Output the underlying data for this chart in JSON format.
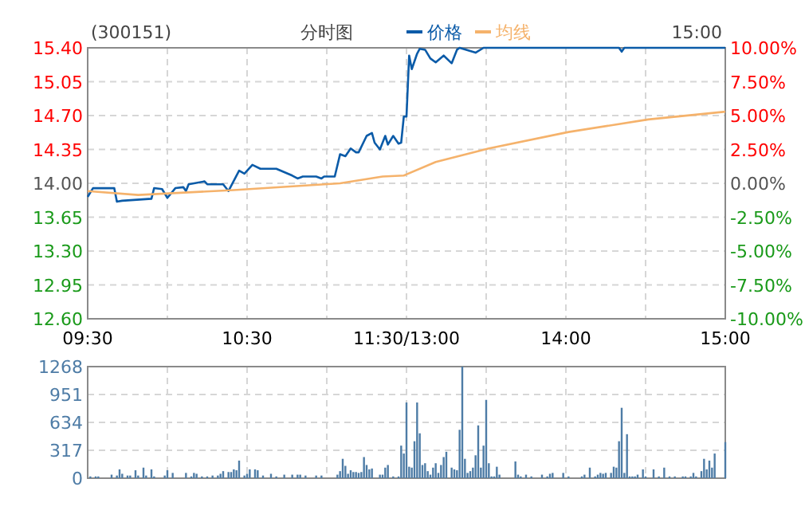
{
  "chart_data": [
    {
      "type": "line",
      "title": "(300151)",
      "subtitle": "分时图",
      "annotations": [
        "15:00"
      ],
      "legend": "top",
      "grid": true,
      "categories": [
        "09:30",
        null,
        null,
        null,
        null,
        null,
        null,
        null,
        null,
        null,
        null,
        null,
        null,
        null,
        null,
        null,
        null,
        null,
        null,
        null,
        null,
        null,
        null,
        null,
        null,
        null,
        null,
        null,
        null,
        null,
        null,
        null,
        null,
        null,
        null,
        null,
        null,
        null,
        null,
        null,
        null,
        null,
        null,
        null,
        null,
        null,
        null,
        null,
        null,
        null,
        null,
        null,
        null,
        null,
        null,
        null,
        null,
        null,
        null,
        null,
        "10:30",
        null,
        null,
        null,
        null,
        null,
        null,
        null,
        null,
        null,
        null,
        null,
        null,
        null,
        null,
        null,
        null,
        null,
        null,
        null,
        null,
        null,
        null,
        null,
        null,
        null,
        null,
        null,
        null,
        null,
        null,
        null,
        null,
        null,
        null,
        null,
        null,
        null,
        null,
        null,
        null,
        null,
        null,
        null,
        null,
        null,
        null,
        null,
        null,
        null,
        null,
        null,
        null,
        null,
        null,
        null,
        null,
        null,
        null,
        null,
        "11:30/13:00",
        null,
        null,
        null,
        null,
        null,
        null,
        null,
        null,
        null,
        null,
        null,
        null,
        null,
        null,
        null,
        null,
        null,
        null,
        null,
        null,
        null,
        null,
        null,
        null,
        null,
        null,
        null,
        null,
        null,
        null,
        null,
        null,
        null,
        null,
        null,
        null,
        null,
        null,
        null,
        null,
        null,
        null,
        null,
        null,
        null,
        null,
        null,
        null,
        null,
        null,
        null,
        null,
        null,
        null,
        null,
        null,
        null,
        null,
        null,
        "14:00",
        null,
        null,
        null,
        null,
        null,
        null,
        null,
        null,
        null,
        null,
        null,
        null,
        null,
        null,
        null,
        null,
        null,
        null,
        null,
        null,
        null,
        null,
        null,
        null,
        null,
        null,
        null,
        null,
        null,
        null,
        null,
        null,
        null,
        null,
        null,
        null,
        null,
        null,
        null,
        null,
        null,
        null,
        null,
        null,
        null,
        null,
        null,
        null,
        null,
        null,
        null,
        null,
        null,
        null,
        null,
        null,
        null,
        null,
        null,
        "15:00"
      ],
      "ylim": [
        12.6,
        15.4
      ],
      "yticks": [
        {
          "value": 12.6,
          "label": "12.60"
        },
        {
          "value": 12.95,
          "label": "12.95"
        },
        {
          "value": 13.3,
          "label": "13.30"
        },
        {
          "value": 13.65,
          "label": "13.65"
        },
        {
          "value": 14.0,
          "label": "14.00"
        },
        {
          "value": 14.35,
          "label": "14.35"
        },
        {
          "value": 14.7,
          "label": "14.70"
        },
        {
          "value": 15.05,
          "label": "15.05"
        },
        {
          "value": 15.4,
          "label": "15.40"
        }
      ],
      "y2lim": [
        -10,
        10
      ],
      "y2ticks": [
        {
          "value": -10,
          "label": "-10.00%"
        },
        {
          "value": -7.5,
          "label": "-7.50%"
        },
        {
          "value": -5,
          "label": "-5.00%"
        },
        {
          "value": -2.5,
          "label": "-2.50%"
        },
        {
          "value": 0,
          "label": "0.00%"
        },
        {
          "value": 2.5,
          "label": "2.50%"
        },
        {
          "value": 5,
          "label": "5.00%"
        },
        {
          "value": 7.5,
          "label": "7.50%"
        },
        {
          "value": 10,
          "label": "10.00%"
        }
      ],
      "series": [
        {
          "name": "价格",
          "color": "#0b5ba8",
          "values": [
            13.86,
            null,
            13.95,
            null,
            null,
            null,
            null,
            null,
            null,
            null,
            13.95,
            13.81,
            null,
            13.82,
            null,
            null,
            null,
            null,
            null,
            null,
            null,
            null,
            null,
            null,
            13.84,
            13.95,
            null,
            null,
            13.94,
            null,
            13.85,
            null,
            null,
            13.95,
            null,
            null,
            13.96,
            13.92,
            13.99,
            null,
            null,
            null,
            null,
            null,
            14.02,
            13.99,
            null,
            null,
            null,
            null,
            null,
            13.99,
            null,
            13.92,
            null,
            null,
            null,
            14.13,
            null,
            14.1,
            null,
            null,
            14.19,
            null,
            null,
            14.15,
            null,
            null,
            null,
            null,
            null,
            14.15,
            null,
            null,
            null,
            null,
            null,
            14.08,
            null,
            14.05,
            null,
            14.07,
            null,
            null,
            null,
            null,
            14.07,
            null,
            14.05,
            14.07,
            null,
            null,
            null,
            14.07,
            null,
            14.3,
            null,
            14.28,
            null,
            14.36,
            null,
            14.32,
            14.32,
            null,
            null,
            14.49,
            null,
            14.52,
            14.42,
            null,
            14.35,
            null,
            14.49,
            14.4,
            null,
            14.49,
            null,
            14.41,
            14.42,
            14.69,
            14.69,
            15.32,
            15.18,
            null,
            15.34,
            15.39,
            null,
            15.38,
            null,
            15.29,
            null,
            15.25,
            null,
            null,
            15.32,
            null,
            null,
            15.24,
            null,
            15.38,
            15.4,
            null,
            null,
            null,
            null,
            null,
            15.35,
            null,
            null,
            15.4,
            null,
            null,
            null,
            null,
            null,
            null,
            null,
            null,
            null,
            null,
            null,
            null,
            null,
            null,
            null,
            null,
            null,
            null,
            null,
            null,
            null,
            null,
            null,
            null,
            null,
            null,
            null,
            null,
            null,
            null,
            null,
            null,
            null,
            null,
            null,
            null,
            null,
            null,
            null,
            null,
            null,
            null,
            null,
            null,
            null,
            null,
            null,
            null,
            null,
            null,
            15.4,
            15.36,
            15.4,
            null,
            null,
            null,
            null,
            null,
            null,
            null,
            null,
            null,
            null,
            null,
            null,
            null,
            null,
            null,
            null,
            null,
            null,
            null,
            null,
            null,
            null,
            null,
            null,
            null,
            null,
            null,
            null,
            null,
            null,
            null,
            null,
            null,
            null,
            null,
            null,
            null,
            15.4
          ]
        },
        {
          "name": "均线",
          "color": "#f5b26b",
          "values": [
            13.92,
            null,
            null,
            null,
            null,
            null,
            null,
            null,
            null,
            null,
            null,
            null,
            null,
            null,
            null,
            null,
            null,
            null,
            null,
            13.88,
            null,
            null,
            null,
            null,
            null,
            null,
            null,
            null,
            null,
            null,
            null,
            null,
            null,
            null,
            null,
            null,
            null,
            null,
            null,
            null,
            null,
            null,
            null,
            null,
            null,
            null,
            null,
            null,
            null,
            null,
            null,
            null,
            null,
            null,
            null,
            13.93,
            null,
            null,
            null,
            null,
            null,
            null,
            null,
            null,
            null,
            null,
            null,
            null,
            null,
            null,
            null,
            null,
            null,
            null,
            null,
            null,
            null,
            null,
            null,
            null,
            null,
            null,
            null,
            null,
            null,
            null,
            null,
            null,
            null,
            null,
            null,
            null,
            null,
            null,
            null,
            14.0,
            null,
            null,
            null,
            null,
            null,
            null,
            null,
            null,
            null,
            null,
            null,
            null,
            null,
            null,
            null,
            14.07,
            null,
            null,
            null,
            null,
            null,
            null,
            null,
            14.08,
            null,
            null,
            null,
            null,
            null,
            null,
            null,
            null,
            null,
            null,
            null,
            14.22,
            null,
            null,
            null,
            null,
            null,
            null,
            null,
            null,
            null,
            null,
            null,
            null,
            null,
            null,
            null,
            null,
            null,
            null,
            null,
            14.36,
            null,
            null,
            null,
            null,
            null,
            null,
            null,
            null,
            null,
            null,
            null,
            null,
            null,
            null,
            null,
            null,
            null,
            null,
            null,
            null,
            null,
            null,
            null,
            null,
            null,
            null,
            null,
            null,
            null,
            14.53,
            null,
            null,
            null,
            null,
            null,
            null,
            null,
            null,
            null,
            null,
            null,
            null,
            null,
            null,
            null,
            null,
            null,
            null,
            null,
            null,
            null,
            null,
            null,
            null,
            null,
            null,
            null,
            null,
            null,
            14.66,
            null,
            null,
            null,
            null,
            null,
            null,
            null,
            null,
            null,
            null,
            null,
            null,
            null,
            null,
            null,
            null,
            null,
            null,
            null,
            null,
            null,
            null,
            null,
            null,
            null,
            null,
            null,
            null,
            14.74
          ]
        }
      ]
    },
    {
      "type": "bar",
      "color": "#4e7ca6",
      "grid": true,
      "categories": [
        null,
        null,
        null,
        null,
        null,
        null,
        null,
        null,
        null,
        null,
        null,
        null,
        null,
        null,
        null,
        null,
        null,
        null,
        null,
        null,
        null,
        null,
        null,
        null,
        null,
        null,
        null,
        null,
        null,
        null,
        null,
        null,
        null,
        null,
        null,
        null,
        null,
        null,
        null,
        null,
        null,
        null,
        null,
        null,
        null,
        null,
        null,
        null,
        null,
        null,
        null,
        null,
        null,
        null,
        null,
        null,
        null,
        null,
        null,
        null,
        null,
        null,
        null,
        null,
        null,
        null,
        null,
        null,
        null,
        null,
        null,
        null,
        null,
        null,
        null,
        null,
        null,
        null,
        null,
        null,
        null,
        null,
        null,
        null,
        null,
        null,
        null,
        null,
        null,
        null,
        null,
        null,
        null,
        null,
        null,
        null,
        null,
        null,
        null,
        null,
        null,
        null,
        null,
        null,
        null,
        null,
        null,
        null,
        null,
        null,
        null,
        null,
        null,
        null,
        null,
        null,
        null,
        null,
        null,
        null,
        null,
        null,
        null,
        null,
        null,
        null,
        null,
        null,
        null,
        null,
        null,
        null,
        null,
        null,
        null,
        null,
        null,
        null,
        null,
        null,
        null,
        null,
        null,
        null,
        null,
        null,
        null,
        null,
        null,
        null,
        null,
        null,
        null,
        null,
        null,
        null,
        null,
        null,
        null,
        null,
        null,
        null,
        null,
        null,
        null,
        null,
        null,
        null,
        null,
        null,
        null,
        null,
        null,
        null,
        null,
        null,
        null,
        null,
        null,
        null,
        null,
        null,
        null,
        null,
        null,
        null,
        null,
        null,
        null,
        null,
        null,
        null,
        null,
        null,
        null,
        null,
        null,
        null,
        null,
        null,
        null,
        null,
        null,
        null,
        null,
        null,
        null,
        null,
        null,
        null,
        null,
        null,
        null,
        null,
        null,
        null,
        null,
        null,
        null,
        null,
        null,
        null,
        null,
        null,
        null,
        null,
        null,
        null,
        null,
        null,
        null,
        null,
        null,
        null,
        null,
        null,
        null,
        null,
        null,
        null,
        null
      ],
      "ylim": [
        0,
        1268
      ],
      "yticks": [
        0,
        317,
        634,
        951,
        1268
      ],
      "values": [
        null,
        20,
        null,
        20,
        20,
        null,
        null,
        null,
        null,
        40,
        null,
        30,
        100,
        50,
        null,
        30,
        30,
        null,
        90,
        30,
        null,
        120,
        30,
        null,
        100,
        20,
        null,
        null,
        null,
        30,
        90,
        null,
        60,
        null,
        null,
        null,
        null,
        60,
        null,
        20,
        60,
        50,
        null,
        20,
        null,
        20,
        null,
        30,
        null,
        30,
        50,
        80,
        null,
        70,
        70,
        100,
        90,
        200,
        null,
        30,
        50,
        100,
        null,
        100,
        90,
        null,
        30,
        null,
        null,
        50,
        null,
        20,
        null,
        null,
        40,
        null,
        null,
        40,
        null,
        40,
        40,
        null,
        30,
        null,
        null,
        null,
        30,
        null,
        30,
        null,
        null,
        null,
        null,
        null,
        40,
        80,
        220,
        140,
        50,
        90,
        70,
        70,
        60,
        70,
        240,
        150,
        100,
        110,
        null,
        null,
        40,
        40,
        120,
        150,
        null,
        20,
        null,
        20,
        370,
        280,
        860,
        130,
        120,
        420,
        860,
        510,
        150,
        170,
        80,
        40,
        120,
        170,
        60,
        150,
        240,
        300,
        null,
        120,
        100,
        90,
        550,
        1268,
        220,
        60,
        80,
        120,
        260,
        600,
        120,
        370,
        890,
        170,
        20,
        20,
        130,
        40,
        null,
        null,
        null,
        null,
        null,
        190,
        40,
        20,
        null,
        40,
        null,
        20,
        null,
        null,
        null,
        40,
        null,
        20,
        50,
        60,
        null,
        null,
        null,
        60,
        null,
        20,
        null,
        null,
        null,
        null,
        20,
        40,
        null,
        120,
        null,
        20,
        40,
        60,
        50,
        60,
        null,
        60,
        130,
        120,
        420,
        800,
        60,
        500,
        20,
        20,
        20,
        40,
        null,
        100,
        20,
        null,
        null,
        100,
        null,
        20,
        null,
        120,
        null,
        20,
        null,
        20,
        null,
        null,
        20,
        20,
        null,
        20,
        60,
        20,
        null,
        80,
        220,
        100,
        200,
        120,
        280,
        null,
        null,
        null,
        410
      ]
    }
  ]
}
